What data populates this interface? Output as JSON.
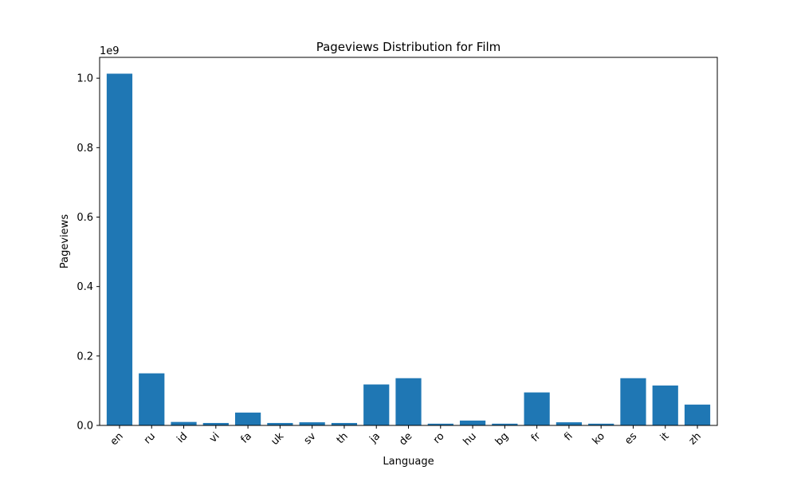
{
  "chart_data": {
    "type": "bar",
    "title": "Pageviews Distribution for Film",
    "xlabel": "Language",
    "ylabel": "Pageviews",
    "y_multiplier_label": "1e9",
    "categories": [
      "en",
      "ru",
      "id",
      "vi",
      "fa",
      "uk",
      "sv",
      "th",
      "ja",
      "de",
      "ro",
      "hu",
      "bg",
      "fr",
      "fi",
      "ko",
      "es",
      "it",
      "zh"
    ],
    "values": [
      1013000000,
      150000000,
      10000000,
      7000000,
      37000000,
      7000000,
      9000000,
      7000000,
      118000000,
      136000000,
      5000000,
      14000000,
      5000000,
      95000000,
      9000000,
      5000000,
      136000000,
      115000000,
      60000000
    ],
    "ylim": [
      0,
      1060000000
    ],
    "yticks": [
      0,
      200000000,
      400000000,
      600000000,
      800000000,
      1000000000
    ],
    "ytick_labels": [
      "0.0",
      "0.2",
      "0.4",
      "0.6",
      "0.8",
      "1.0"
    ],
    "bar_color": "#1f77b4",
    "grid": false,
    "xtick_rotation": "45"
  }
}
